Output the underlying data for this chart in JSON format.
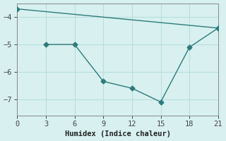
{
  "line1_x": [
    0,
    21
  ],
  "line1_y": [
    -3.7,
    -4.4
  ],
  "line2_x": [
    3,
    6,
    9,
    12,
    15,
    18,
    21
  ],
  "line2_y": [
    -5.0,
    -5.0,
    -6.35,
    -6.6,
    -7.1,
    -5.1,
    -4.4
  ],
  "color": "#2d7b7b",
  "bg_color": "#d8f0f0",
  "grid_color": "#b8dede",
  "xlabel": "Humidex (Indice chaleur)",
  "xlim": [
    0,
    21
  ],
  "ylim": [
    -7.6,
    -3.5
  ],
  "xticks": [
    0,
    3,
    6,
    9,
    12,
    15,
    18,
    21
  ],
  "yticks": [
    -7,
    -6,
    -5,
    -4
  ],
  "marker": "D",
  "markersize": 3.5,
  "linewidth": 1.0
}
